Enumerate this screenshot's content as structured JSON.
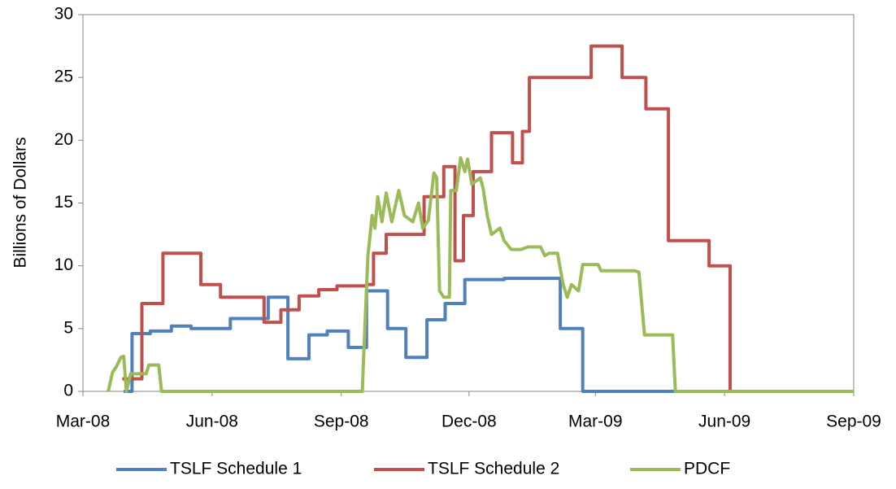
{
  "chart_data": {
    "type": "line",
    "ylabel": "Billions of Dollars",
    "xlim": [
      0,
      549
    ],
    "xticks": [
      {
        "value": 0,
        "label": "Mar-08"
      },
      {
        "value": 92,
        "label": "Jun-08"
      },
      {
        "value": 184,
        "label": "Sep-08"
      },
      {
        "value": 275,
        "label": "Dec-08"
      },
      {
        "value": 365,
        "label": "Mar-09"
      },
      {
        "value": 457,
        "label": "Jun-09"
      },
      {
        "value": 549,
        "label": "Sep-09"
      }
    ],
    "ylim": [
      0,
      30
    ],
    "yticks": [
      0,
      5,
      10,
      15,
      20,
      25,
      30
    ],
    "grid": false,
    "legend": "bottom",
    "series": [
      {
        "name": "TSLF Schedule 1",
        "color": "#4f81bd",
        "x": [
          29,
          35,
          35,
          48,
          48,
          63,
          63,
          77,
          77,
          105,
          105,
          132,
          132,
          146,
          146,
          161,
          161,
          174,
          174,
          189,
          189,
          202,
          202,
          217,
          217,
          230,
          230,
          245,
          245,
          258,
          258,
          272,
          272,
          300,
          300,
          340,
          340,
          356,
          356,
          549
        ],
        "values": [
          0,
          0,
          4.6,
          4.6,
          4.8,
          4.8,
          5.2,
          5.2,
          5.0,
          5.0,
          5.8,
          5.8,
          7.5,
          7.5,
          2.6,
          2.6,
          4.5,
          4.5,
          4.8,
          4.8,
          3.5,
          3.5,
          8.0,
          8.0,
          5.0,
          5.0,
          2.7,
          2.7,
          5.7,
          5.7,
          7.0,
          7.0,
          8.9,
          8.9,
          9.0,
          9.0,
          5.0,
          5.0,
          0,
          0
        ]
      },
      {
        "name": "TSLF Schedule 2",
        "color": "#c0504d",
        "x": [
          28,
          42,
          42,
          57,
          57,
          84,
          84,
          98,
          98,
          129,
          129,
          141,
          141,
          154,
          154,
          168,
          168,
          181,
          181,
          202,
          202,
          207,
          207,
          216,
          216,
          243,
          243,
          257,
          257,
          265,
          265,
          271,
          271,
          278,
          278,
          291,
          291,
          306,
          306,
          313,
          313,
          318,
          318,
          362,
          362,
          384,
          384,
          401,
          401,
          417,
          417,
          446,
          446,
          461,
          461,
          549
        ],
        "values": [
          1,
          1,
          7,
          7,
          11,
          11,
          8.5,
          8.5,
          7.5,
          7.5,
          5.5,
          5.5,
          6.5,
          6.5,
          7.6,
          7.6,
          8.1,
          8.1,
          8.4,
          8.4,
          8.5,
          8.5,
          11,
          11,
          12.5,
          12.5,
          15.5,
          15.5,
          17.9,
          17.9,
          10.4,
          10.4,
          14,
          14,
          17.5,
          17.5,
          20.6,
          20.6,
          18.2,
          18.2,
          20.7,
          20.7,
          25,
          25,
          27.5,
          27.5,
          25,
          25,
          22.5,
          22.5,
          12,
          12,
          10,
          10,
          0,
          0
        ]
      },
      {
        "name": "PDCF",
        "color": "#9bbb59",
        "x": [
          18,
          21,
          24,
          27,
          29,
          31,
          34,
          45,
          47,
          54,
          56,
          199,
          200,
          203,
          206,
          208,
          210,
          213,
          216,
          220,
          225,
          229,
          235,
          239,
          242,
          246,
          250,
          252,
          254,
          257,
          261,
          262,
          266,
          269,
          272,
          274,
          277,
          283,
          285,
          288,
          291,
          297,
          300,
          305,
          312,
          317,
          326,
          329,
          332,
          338,
          342,
          345,
          348,
          353,
          356,
          367,
          369,
          393,
          396,
          400,
          420,
          422,
          549
        ],
        "values": [
          0,
          1.5,
          2.0,
          2.7,
          2.8,
          0,
          1.4,
          1.4,
          2.1,
          2.1,
          0,
          0,
          3,
          10.8,
          14,
          13,
          15.5,
          13.5,
          15.8,
          13.5,
          16,
          14,
          13.5,
          15,
          13,
          13.6,
          17.4,
          17,
          8,
          7.5,
          7.5,
          16,
          16,
          18.6,
          17.5,
          18.5,
          16.5,
          17,
          16.2,
          14,
          12.5,
          13,
          12,
          11.3,
          11.3,
          11.5,
          11.5,
          10.8,
          11,
          11,
          8.5,
          7.5,
          8.5,
          8,
          10.1,
          10.1,
          9.6,
          9.6,
          9.5,
          4.5,
          4.5,
          0,
          0
        ]
      }
    ]
  }
}
